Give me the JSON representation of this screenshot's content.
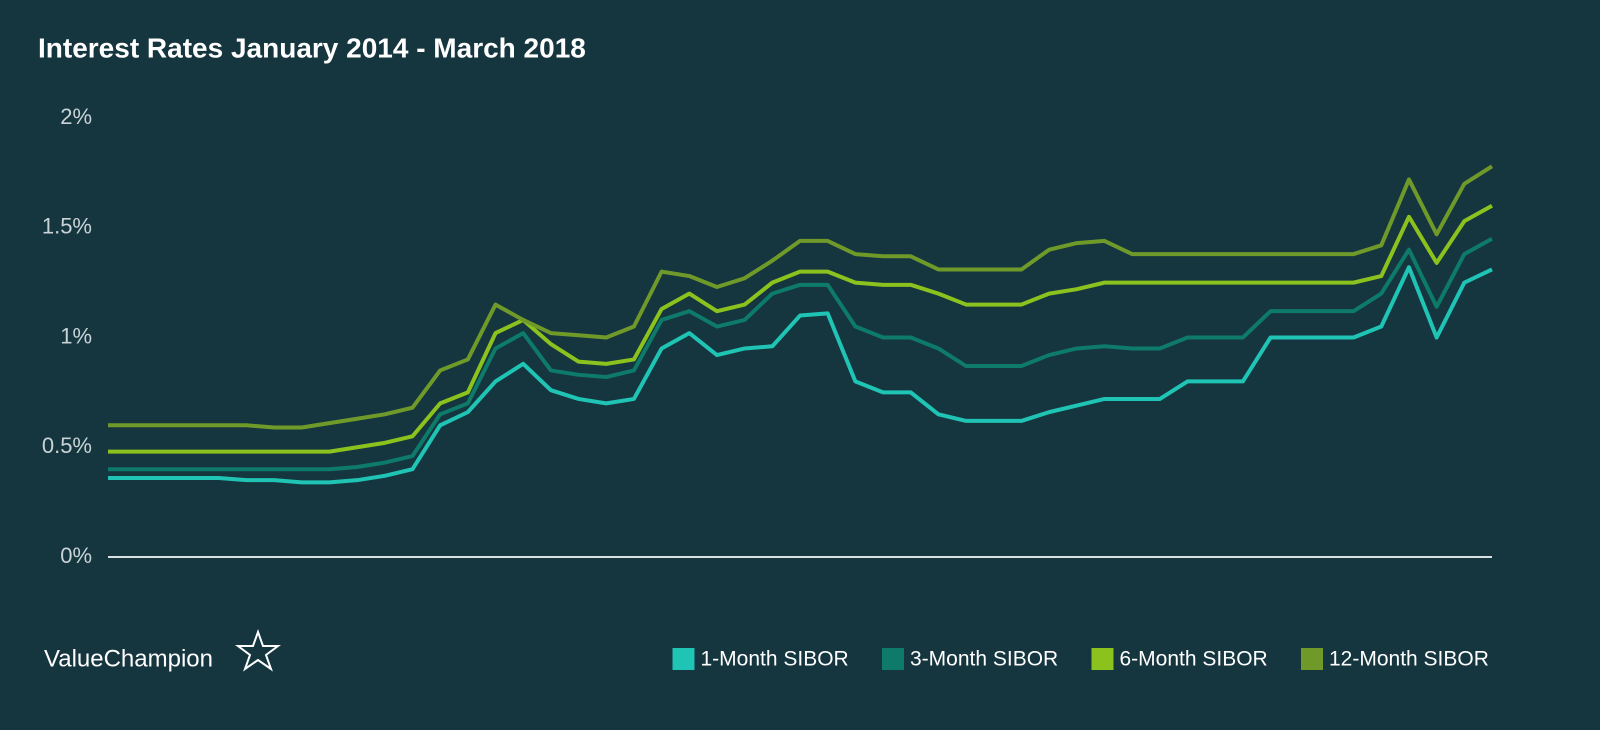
{
  "chart_data": {
    "type": "line",
    "title": "Interest Rates January 2014 - March 2018",
    "brand": "ValueChampion",
    "ylim": [
      0,
      2
    ],
    "yticks": [
      {
        "value": 0,
        "label": "0%"
      },
      {
        "value": 0.5,
        "label": "0.5%"
      },
      {
        "value": 1,
        "label": "1%"
      },
      {
        "value": 1.5,
        "label": "1.5%"
      },
      {
        "value": 2,
        "label": "2%"
      }
    ],
    "legend": "bottom-right",
    "series": [
      {
        "name": "1-Month SIBOR",
        "color": "#1fc4b4",
        "values": [
          0.36,
          0.36,
          0.36,
          0.36,
          0.36,
          0.35,
          0.35,
          0.34,
          0.34,
          0.35,
          0.37,
          0.4,
          0.6,
          0.66,
          0.8,
          0.88,
          0.76,
          0.72,
          0.7,
          0.72,
          0.95,
          1.02,
          0.92,
          0.95,
          0.96,
          1.1,
          1.11,
          0.8,
          0.75,
          0.75,
          0.65,
          0.62,
          0.62,
          0.62,
          0.66,
          0.69,
          0.72,
          0.72,
          0.72,
          0.8,
          0.8,
          0.8,
          1.0,
          1.0,
          1.0,
          1.0,
          1.05,
          1.32,
          1.0,
          1.25,
          1.31
        ]
      },
      {
        "name": "3-Month SIBOR",
        "color": "#0d7a6a",
        "values": [
          0.4,
          0.4,
          0.4,
          0.4,
          0.4,
          0.4,
          0.4,
          0.4,
          0.4,
          0.41,
          0.43,
          0.46,
          0.65,
          0.7,
          0.95,
          1.02,
          0.85,
          0.83,
          0.82,
          0.85,
          1.08,
          1.12,
          1.05,
          1.08,
          1.2,
          1.24,
          1.24,
          1.05,
          1.0,
          1.0,
          0.95,
          0.87,
          0.87,
          0.87,
          0.92,
          0.95,
          0.96,
          0.95,
          0.95,
          1.0,
          1.0,
          1.0,
          1.12,
          1.12,
          1.12,
          1.12,
          1.2,
          1.4,
          1.14,
          1.38,
          1.45
        ]
      },
      {
        "name": "6-Month SIBOR",
        "color": "#8cc21e",
        "values": [
          0.48,
          0.48,
          0.48,
          0.48,
          0.48,
          0.48,
          0.48,
          0.48,
          0.48,
          0.5,
          0.52,
          0.55,
          0.7,
          0.75,
          1.02,
          1.08,
          0.97,
          0.89,
          0.88,
          0.9,
          1.13,
          1.2,
          1.12,
          1.15,
          1.25,
          1.3,
          1.3,
          1.25,
          1.24,
          1.24,
          1.2,
          1.15,
          1.15,
          1.15,
          1.2,
          1.22,
          1.25,
          1.25,
          1.25,
          1.25,
          1.25,
          1.25,
          1.25,
          1.25,
          1.25,
          1.25,
          1.28,
          1.55,
          1.34,
          1.53,
          1.6
        ]
      },
      {
        "name": "12-Month SIBOR",
        "color": "#6f9a2a",
        "values": [
          0.6,
          0.6,
          0.6,
          0.6,
          0.6,
          0.6,
          0.59,
          0.59,
          0.61,
          0.63,
          0.65,
          0.68,
          0.85,
          0.9,
          1.15,
          1.08,
          1.02,
          1.01,
          1.0,
          1.05,
          1.3,
          1.28,
          1.23,
          1.27,
          1.35,
          1.44,
          1.44,
          1.38,
          1.37,
          1.37,
          1.31,
          1.31,
          1.31,
          1.31,
          1.4,
          1.43,
          1.44,
          1.38,
          1.38,
          1.38,
          1.38,
          1.38,
          1.38,
          1.38,
          1.38,
          1.38,
          1.42,
          1.72,
          1.47,
          1.7,
          1.78
        ]
      }
    ]
  }
}
